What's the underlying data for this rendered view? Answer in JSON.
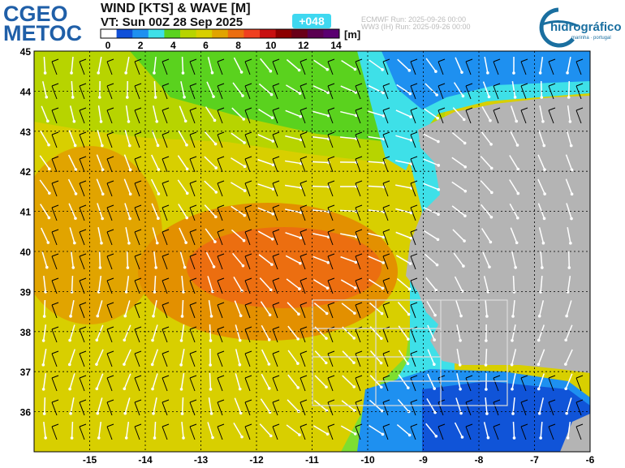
{
  "header": {
    "title": "WIND [KTS] & WAVE [M]",
    "valid_time": "VT: Sun 00Z 28 Sep 2025",
    "lead": "+048",
    "run_ecmwf": "ECMWF    Run: 2025-09-26 00:00",
    "run_ww3": "WW3 (IH) Run: 2025-09-26 00:00"
  },
  "logo_left": [
    "CGEO",
    "METOC"
  ],
  "logo_right": {
    "name": "hidrográfico",
    "tagline": "marinha · portugal"
  },
  "colorbar": {
    "ticks": [
      0,
      2,
      4,
      6,
      8,
      10,
      12,
      14
    ],
    "unit": "[m]"
  },
  "map": {
    "lat_ticks": [
      45,
      44,
      43,
      42,
      41,
      40,
      39,
      38,
      37,
      36
    ],
    "lon_ticks": [
      -15,
      -14,
      -13,
      -12,
      -11,
      -10,
      -9,
      -8,
      -7,
      -6
    ]
  }
}
